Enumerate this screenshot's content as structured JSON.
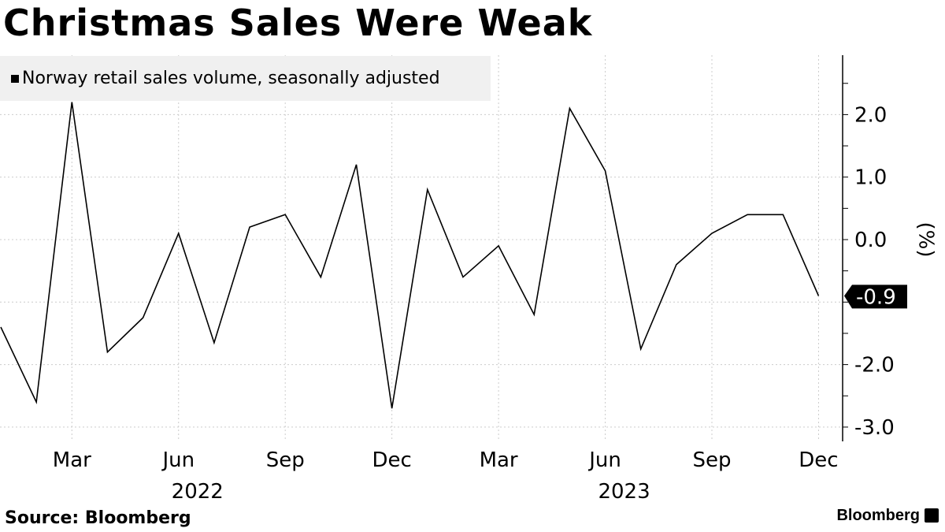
{
  "title": "Christmas Sales Were Weak",
  "source": "Source: Bloomberg",
  "brand": "Bloomberg",
  "chart_data": {
    "type": "line",
    "title": "Christmas Sales Were Weak",
    "ylabel": "(%)",
    "legend": [
      {
        "label": "Norway retail sales volume, seasonally adjusted",
        "color": "#000000"
      }
    ],
    "legend_placement": "top-left",
    "ylim": [
      -3.25,
      2.9
    ],
    "yticks": [
      2.0,
      1.0,
      0.0,
      -2.0,
      -3.0
    ],
    "ytick_labels": [
      "2.0",
      "1.0",
      "0.0",
      "-2.0",
      "-3.0"
    ],
    "xtick_labels": [
      {
        "month": "Mar",
        "year": "",
        "idx": 2
      },
      {
        "month": "Jun",
        "year": "2022",
        "idx": 5
      },
      {
        "month": "Sep",
        "year": "",
        "idx": 8
      },
      {
        "month": "Dec",
        "year": "",
        "idx": 11
      },
      {
        "month": "Mar",
        "year": "",
        "idx": 14
      },
      {
        "month": "Jun",
        "year": "2023",
        "idx": 17
      },
      {
        "month": "Sep",
        "year": "",
        "idx": 20
      },
      {
        "month": "Dec",
        "year": "",
        "idx": 23
      }
    ],
    "x": [
      "2022-01",
      "2022-02",
      "2022-03",
      "2022-04",
      "2022-05",
      "2022-06",
      "2022-07",
      "2022-08",
      "2022-09",
      "2022-10",
      "2022-11",
      "2022-12",
      "2023-01",
      "2023-02",
      "2023-03",
      "2023-04",
      "2023-05",
      "2023-06",
      "2023-07",
      "2023-08",
      "2023-09",
      "2023-10",
      "2023-11",
      "2023-12"
    ],
    "series": [
      {
        "name": "Norway retail sales volume, seasonally adjusted",
        "values": [
          -1.4,
          -2.6,
          2.2,
          -1.8,
          -1.25,
          0.1,
          -1.65,
          0.2,
          0.4,
          -0.6,
          1.2,
          -2.7,
          0.8,
          -0.6,
          -0.1,
          -1.2,
          2.1,
          1.1,
          -1.75,
          -0.4,
          0.1,
          0.4,
          0.4,
          -0.9
        ]
      }
    ],
    "last_value_label": "-0.9",
    "grid": true
  }
}
